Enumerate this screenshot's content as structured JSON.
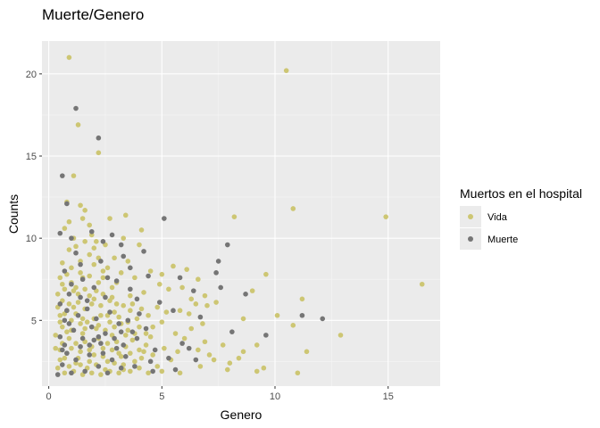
{
  "chart_data": {
    "type": "scatter",
    "title": "Muerte/Genero",
    "xlabel": "Genero",
    "ylabel": "Counts",
    "xlim": [
      -0.3,
      17.3
    ],
    "ylim": [
      1.0,
      22.0
    ],
    "x_ticks": [
      0,
      5,
      10,
      15
    ],
    "y_ticks": [
      5,
      10,
      15,
      20
    ],
    "x_tick_labels": [
      "0",
      "5",
      "10",
      "15"
    ],
    "y_tick_labels": [
      "5",
      "10",
      "15",
      "20"
    ],
    "grid": true,
    "legend": {
      "title": "Muertos en el hospital",
      "position": "right",
      "entries": [
        "Vida",
        "Muerte"
      ]
    },
    "colors": {
      "Vida": "#cdc673",
      "Muerte": "#757575",
      "panel": "#ebebeb",
      "grid_major": "#ffffff",
      "grid_minor": "#f5f5f5"
    },
    "series": [
      {
        "name": "Vida",
        "points": [
          [
            0.9,
            21.0
          ],
          [
            10.5,
            20.2
          ],
          [
            1.3,
            16.9
          ],
          [
            2.2,
            15.2
          ],
          [
            1.1,
            13.8
          ],
          [
            1.4,
            12.0
          ],
          [
            0.8,
            12.2
          ],
          [
            1.6,
            11.7
          ],
          [
            1.5,
            11.2
          ],
          [
            0.9,
            11.0
          ],
          [
            2.7,
            11.2
          ],
          [
            3.4,
            11.4
          ],
          [
            4.1,
            10.5
          ],
          [
            3.3,
            10.0
          ],
          [
            2.5,
            9.6
          ],
          [
            1.9,
            10.2
          ],
          [
            2.1,
            9.8
          ],
          [
            1.1,
            10.0
          ],
          [
            0.9,
            9.3
          ],
          [
            1.8,
            9.0
          ],
          [
            2.9,
            8.8
          ],
          [
            3.5,
            8.6
          ],
          [
            4.0,
            9.6
          ],
          [
            0.6,
            8.5
          ],
          [
            1.4,
            8.6
          ],
          [
            2.4,
            8.0
          ],
          [
            3.2,
            7.9
          ],
          [
            3.8,
            7.6
          ],
          [
            4.5,
            8.0
          ],
          [
            5.0,
            7.8
          ],
          [
            5.5,
            8.3
          ],
          [
            6.1,
            8.1
          ],
          [
            6.6,
            7.5
          ],
          [
            4.9,
            7.2
          ],
          [
            5.3,
            6.9
          ],
          [
            5.9,
            7.0
          ],
          [
            6.3,
            6.3
          ],
          [
            6.9,
            6.5
          ],
          [
            7.4,
            6.1
          ],
          [
            4.2,
            6.7
          ],
          [
            2.2,
            7.3
          ],
          [
            2.8,
            7.0
          ],
          [
            1.0,
            7.3
          ],
          [
            1.5,
            7.6
          ],
          [
            0.7,
            6.9
          ],
          [
            3.6,
            6.5
          ],
          [
            2.0,
            6.3
          ],
          [
            1.3,
            6.1
          ],
          [
            0.8,
            5.6
          ],
          [
            0.5,
            5.3
          ],
          [
            10.8,
            11.8
          ],
          [
            8.2,
            11.3
          ],
          [
            14.9,
            11.3
          ],
          [
            16.5,
            7.2
          ],
          [
            9.6,
            7.8
          ],
          [
            11.2,
            6.3
          ],
          [
            9.0,
            6.8
          ],
          [
            8.6,
            5.1
          ],
          [
            10.1,
            5.3
          ],
          [
            10.8,
            4.7
          ],
          [
            9.2,
            3.5
          ],
          [
            12.9,
            4.1
          ],
          [
            11.4,
            3.1
          ],
          [
            7.7,
            3.5
          ],
          [
            8.4,
            2.7
          ],
          [
            9.2,
            1.9
          ],
          [
            9.5,
            2.1
          ],
          [
            8.0,
            2.4
          ],
          [
            7.9,
            2.0
          ],
          [
            8.6,
            3.1
          ],
          [
            11.0,
            1.8
          ],
          [
            7.3,
            2.6
          ],
          [
            6.9,
            3.7
          ],
          [
            7.1,
            2.9
          ],
          [
            6.7,
            2.2
          ],
          [
            6.6,
            3.2
          ],
          [
            6.3,
            4.5
          ],
          [
            6.0,
            3.9
          ],
          [
            5.7,
            3.1
          ],
          [
            5.4,
            2.6
          ],
          [
            5.1,
            3.3
          ],
          [
            4.8,
            2.2
          ],
          [
            4.5,
            4.0
          ],
          [
            4.3,
            3.5
          ],
          [
            4.1,
            2.7
          ],
          [
            3.9,
            5.1
          ],
          [
            3.7,
            3.8
          ],
          [
            3.5,
            4.4
          ],
          [
            3.3,
            2.3
          ],
          [
            3.1,
            3.0
          ],
          [
            2.9,
            5.5
          ],
          [
            2.7,
            4.9
          ],
          [
            2.6,
            3.6
          ],
          [
            2.4,
            2.8
          ],
          [
            2.3,
            5.9
          ],
          [
            2.1,
            4.5
          ],
          [
            1.9,
            3.4
          ],
          [
            1.8,
            2.5
          ],
          [
            1.6,
            5.7
          ],
          [
            1.5,
            4.2
          ],
          [
            1.4,
            3.1
          ],
          [
            1.2,
            2.4
          ],
          [
            1.1,
            6.8
          ],
          [
            1.0,
            5.0
          ],
          [
            0.9,
            3.9
          ],
          [
            0.7,
            2.7
          ],
          [
            0.6,
            4.6
          ],
          [
            0.5,
            3.2
          ],
          [
            0.4,
            2.1
          ],
          [
            0.3,
            4.1
          ],
          [
            0.4,
            5.8
          ],
          [
            0.6,
            6.2
          ],
          [
            0.8,
            4.3
          ],
          [
            1.0,
            3.3
          ],
          [
            1.2,
            5.4
          ],
          [
            1.4,
            4.8
          ],
          [
            1.6,
            3.7
          ],
          [
            1.8,
            6.5
          ],
          [
            2.0,
            5.1
          ],
          [
            2.2,
            3.9
          ],
          [
            2.4,
            6.6
          ],
          [
            2.6,
            5.3
          ],
          [
            2.8,
            4.1
          ],
          [
            3.0,
            6.0
          ],
          [
            3.2,
            4.8
          ],
          [
            3.4,
            3.4
          ],
          [
            3.6,
            5.6
          ],
          [
            3.8,
            4.2
          ],
          [
            4.0,
            3.2
          ],
          [
            4.4,
            5.3
          ],
          [
            4.6,
            4.6
          ],
          [
            4.8,
            5.8
          ],
          [
            5.0,
            4.9
          ],
          [
            5.2,
            5.5
          ],
          [
            5.6,
            4.2
          ],
          [
            5.8,
            5.6
          ],
          [
            6.2,
            5.4
          ],
          [
            6.5,
            6.0
          ],
          [
            6.8,
            4.8
          ],
          [
            7.0,
            5.9
          ],
          [
            0.5,
            2.6
          ],
          [
            0.7,
            1.8
          ],
          [
            0.9,
            2.2
          ],
          [
            1.1,
            1.9
          ],
          [
            1.3,
            2.7
          ],
          [
            1.5,
            1.7
          ],
          [
            1.7,
            2.1
          ],
          [
            1.9,
            1.8
          ],
          [
            2.1,
            2.3
          ],
          [
            2.3,
            1.7
          ],
          [
            2.5,
            2.0
          ],
          [
            2.7,
            1.9
          ],
          [
            2.9,
            2.4
          ],
          [
            3.1,
            1.8
          ],
          [
            3.3,
            2.0
          ],
          [
            3.6,
            1.9
          ],
          [
            4.0,
            2.1
          ],
          [
            4.4,
            1.8
          ],
          [
            5.0,
            1.9
          ],
          [
            5.8,
            1.8
          ],
          [
            0.6,
            3.6
          ],
          [
            0.8,
            3.0
          ],
          [
            1.0,
            4.4
          ],
          [
            1.2,
            3.6
          ],
          [
            1.4,
            2.3
          ],
          [
            1.6,
            4.5
          ],
          [
            1.8,
            3.2
          ],
          [
            2.0,
            2.9
          ],
          [
            2.2,
            4.7
          ],
          [
            2.4,
            3.3
          ],
          [
            2.6,
            2.5
          ],
          [
            2.8,
            3.2
          ],
          [
            3.0,
            3.7
          ],
          [
            3.2,
            2.8
          ],
          [
            3.4,
            4.1
          ],
          [
            3.6,
            3.0
          ],
          [
            3.8,
            2.5
          ],
          [
            4.0,
            4.6
          ],
          [
            4.2,
            3.1
          ],
          [
            4.6,
            2.9
          ],
          [
            0.3,
            3.3
          ],
          [
            0.5,
            4.9
          ],
          [
            0.7,
            5.4
          ],
          [
            0.9,
            6.0
          ],
          [
            1.1,
            5.8
          ],
          [
            1.3,
            6.6
          ],
          [
            1.5,
            5.1
          ],
          [
            1.7,
            4.9
          ],
          [
            1.9,
            6.0
          ],
          [
            2.1,
            6.8
          ],
          [
            2.3,
            5.3
          ],
          [
            2.5,
            4.4
          ],
          [
            2.7,
            6.2
          ],
          [
            2.9,
            4.6
          ],
          [
            3.1,
            5.2
          ],
          [
            3.3,
            5.9
          ],
          [
            3.5,
            4.9
          ],
          [
            3.7,
            6.0
          ],
          [
            4.1,
            5.7
          ],
          [
            4.3,
            4.2
          ],
          [
            0.4,
            6.6
          ],
          [
            0.6,
            7.2
          ],
          [
            0.8,
            7.8
          ],
          [
            1.0,
            8.2
          ],
          [
            1.2,
            7.0
          ],
          [
            1.4,
            7.9
          ],
          [
            1.6,
            6.9
          ],
          [
            1.8,
            7.7
          ],
          [
            2.0,
            8.4
          ],
          [
            2.2,
            8.8
          ],
          [
            2.4,
            7.6
          ],
          [
            2.6,
            8.2
          ],
          [
            2.8,
            6.4
          ],
          [
            3.0,
            7.3
          ],
          [
            1.2,
            9.5
          ],
          [
            1.6,
            9.8
          ],
          [
            2.0,
            9.4
          ],
          [
            0.7,
            10.6
          ],
          [
            1.8,
            10.8
          ],
          [
            0.5,
            7.6
          ]
        ]
      },
      {
        "name": "Muerte",
        "points": [
          [
            1.2,
            17.9
          ],
          [
            2.2,
            16.1
          ],
          [
            0.6,
            13.8
          ],
          [
            0.8,
            12.1
          ],
          [
            0.5,
            10.3
          ],
          [
            1.0,
            10.0
          ],
          [
            1.9,
            10.4
          ],
          [
            2.8,
            10.2
          ],
          [
            3.2,
            9.6
          ],
          [
            3.3,
            8.9
          ],
          [
            4.2,
            9.2
          ],
          [
            5.1,
            11.2
          ],
          [
            7.9,
            9.6
          ],
          [
            7.5,
            8.6
          ],
          [
            7.4,
            7.9
          ],
          [
            3.6,
            8.2
          ],
          [
            2.3,
            8.6
          ],
          [
            1.4,
            8.4
          ],
          [
            0.7,
            8.0
          ],
          [
            2.6,
            7.6
          ],
          [
            3.0,
            7.4
          ],
          [
            4.4,
            7.7
          ],
          [
            5.8,
            7.6
          ],
          [
            6.4,
            6.8
          ],
          [
            7.6,
            7.0
          ],
          [
            8.7,
            6.6
          ],
          [
            12.1,
            5.1
          ],
          [
            11.2,
            5.3
          ],
          [
            9.6,
            4.1
          ],
          [
            8.1,
            4.3
          ],
          [
            6.7,
            5.2
          ],
          [
            5.5,
            5.6
          ],
          [
            4.9,
            6.1
          ],
          [
            3.9,
            6.3
          ],
          [
            2.5,
            6.4
          ],
          [
            1.7,
            6.2
          ],
          [
            0.9,
            6.6
          ],
          [
            0.5,
            6.0
          ],
          [
            0.7,
            5.0
          ],
          [
            1.1,
            4.4
          ],
          [
            1.5,
            3.9
          ],
          [
            1.9,
            4.6
          ],
          [
            2.3,
            3.6
          ],
          [
            2.7,
            5.5
          ],
          [
            3.1,
            4.8
          ],
          [
            3.5,
            5.0
          ],
          [
            3.9,
            3.9
          ],
          [
            4.3,
            4.5
          ],
          [
            4.7,
            3.2
          ],
          [
            5.3,
            2.7
          ],
          [
            5.9,
            3.6
          ],
          [
            6.5,
            2.6
          ],
          [
            6.2,
            3.3
          ],
          [
            0.4,
            1.7
          ],
          [
            0.6,
            2.3
          ],
          [
            0.8,
            3.0
          ],
          [
            1.0,
            1.8
          ],
          [
            1.2,
            2.6
          ],
          [
            1.4,
            3.4
          ],
          [
            1.6,
            1.9
          ],
          [
            1.8,
            2.9
          ],
          [
            2.0,
            3.8
          ],
          [
            2.2,
            2.2
          ],
          [
            2.4,
            3.0
          ],
          [
            2.6,
            1.8
          ],
          [
            2.8,
            2.6
          ],
          [
            3.0,
            3.3
          ],
          [
            3.2,
            2.1
          ],
          [
            3.4,
            2.8
          ],
          [
            3.8,
            2.2
          ],
          [
            4.5,
            2.5
          ],
          [
            4.6,
            1.9
          ],
          [
            5.6,
            2.0
          ],
          [
            0.5,
            4.0
          ],
          [
            0.7,
            3.5
          ],
          [
            0.9,
            4.8
          ],
          [
            1.3,
            5.3
          ],
          [
            1.7,
            5.7
          ],
          [
            2.1,
            5.1
          ],
          [
            2.5,
            4.2
          ],
          [
            2.9,
            3.9
          ],
          [
            3.3,
            3.5
          ],
          [
            3.7,
            4.3
          ],
          [
            1.0,
            7.2
          ],
          [
            1.5,
            7.5
          ],
          [
            2.0,
            7.0
          ],
          [
            1.2,
            9.1
          ],
          [
            2.4,
            9.8
          ],
          [
            0.6,
            3.2
          ],
          [
            4.0,
            5.4
          ],
          [
            3.6,
            6.9
          ],
          [
            2.2,
            4.0
          ],
          [
            1.8,
            3.5
          ],
          [
            1.4,
            6.4
          ],
          [
            0.8,
            5.6
          ],
          [
            3.2,
            4.3
          ]
        ]
      }
    ]
  }
}
